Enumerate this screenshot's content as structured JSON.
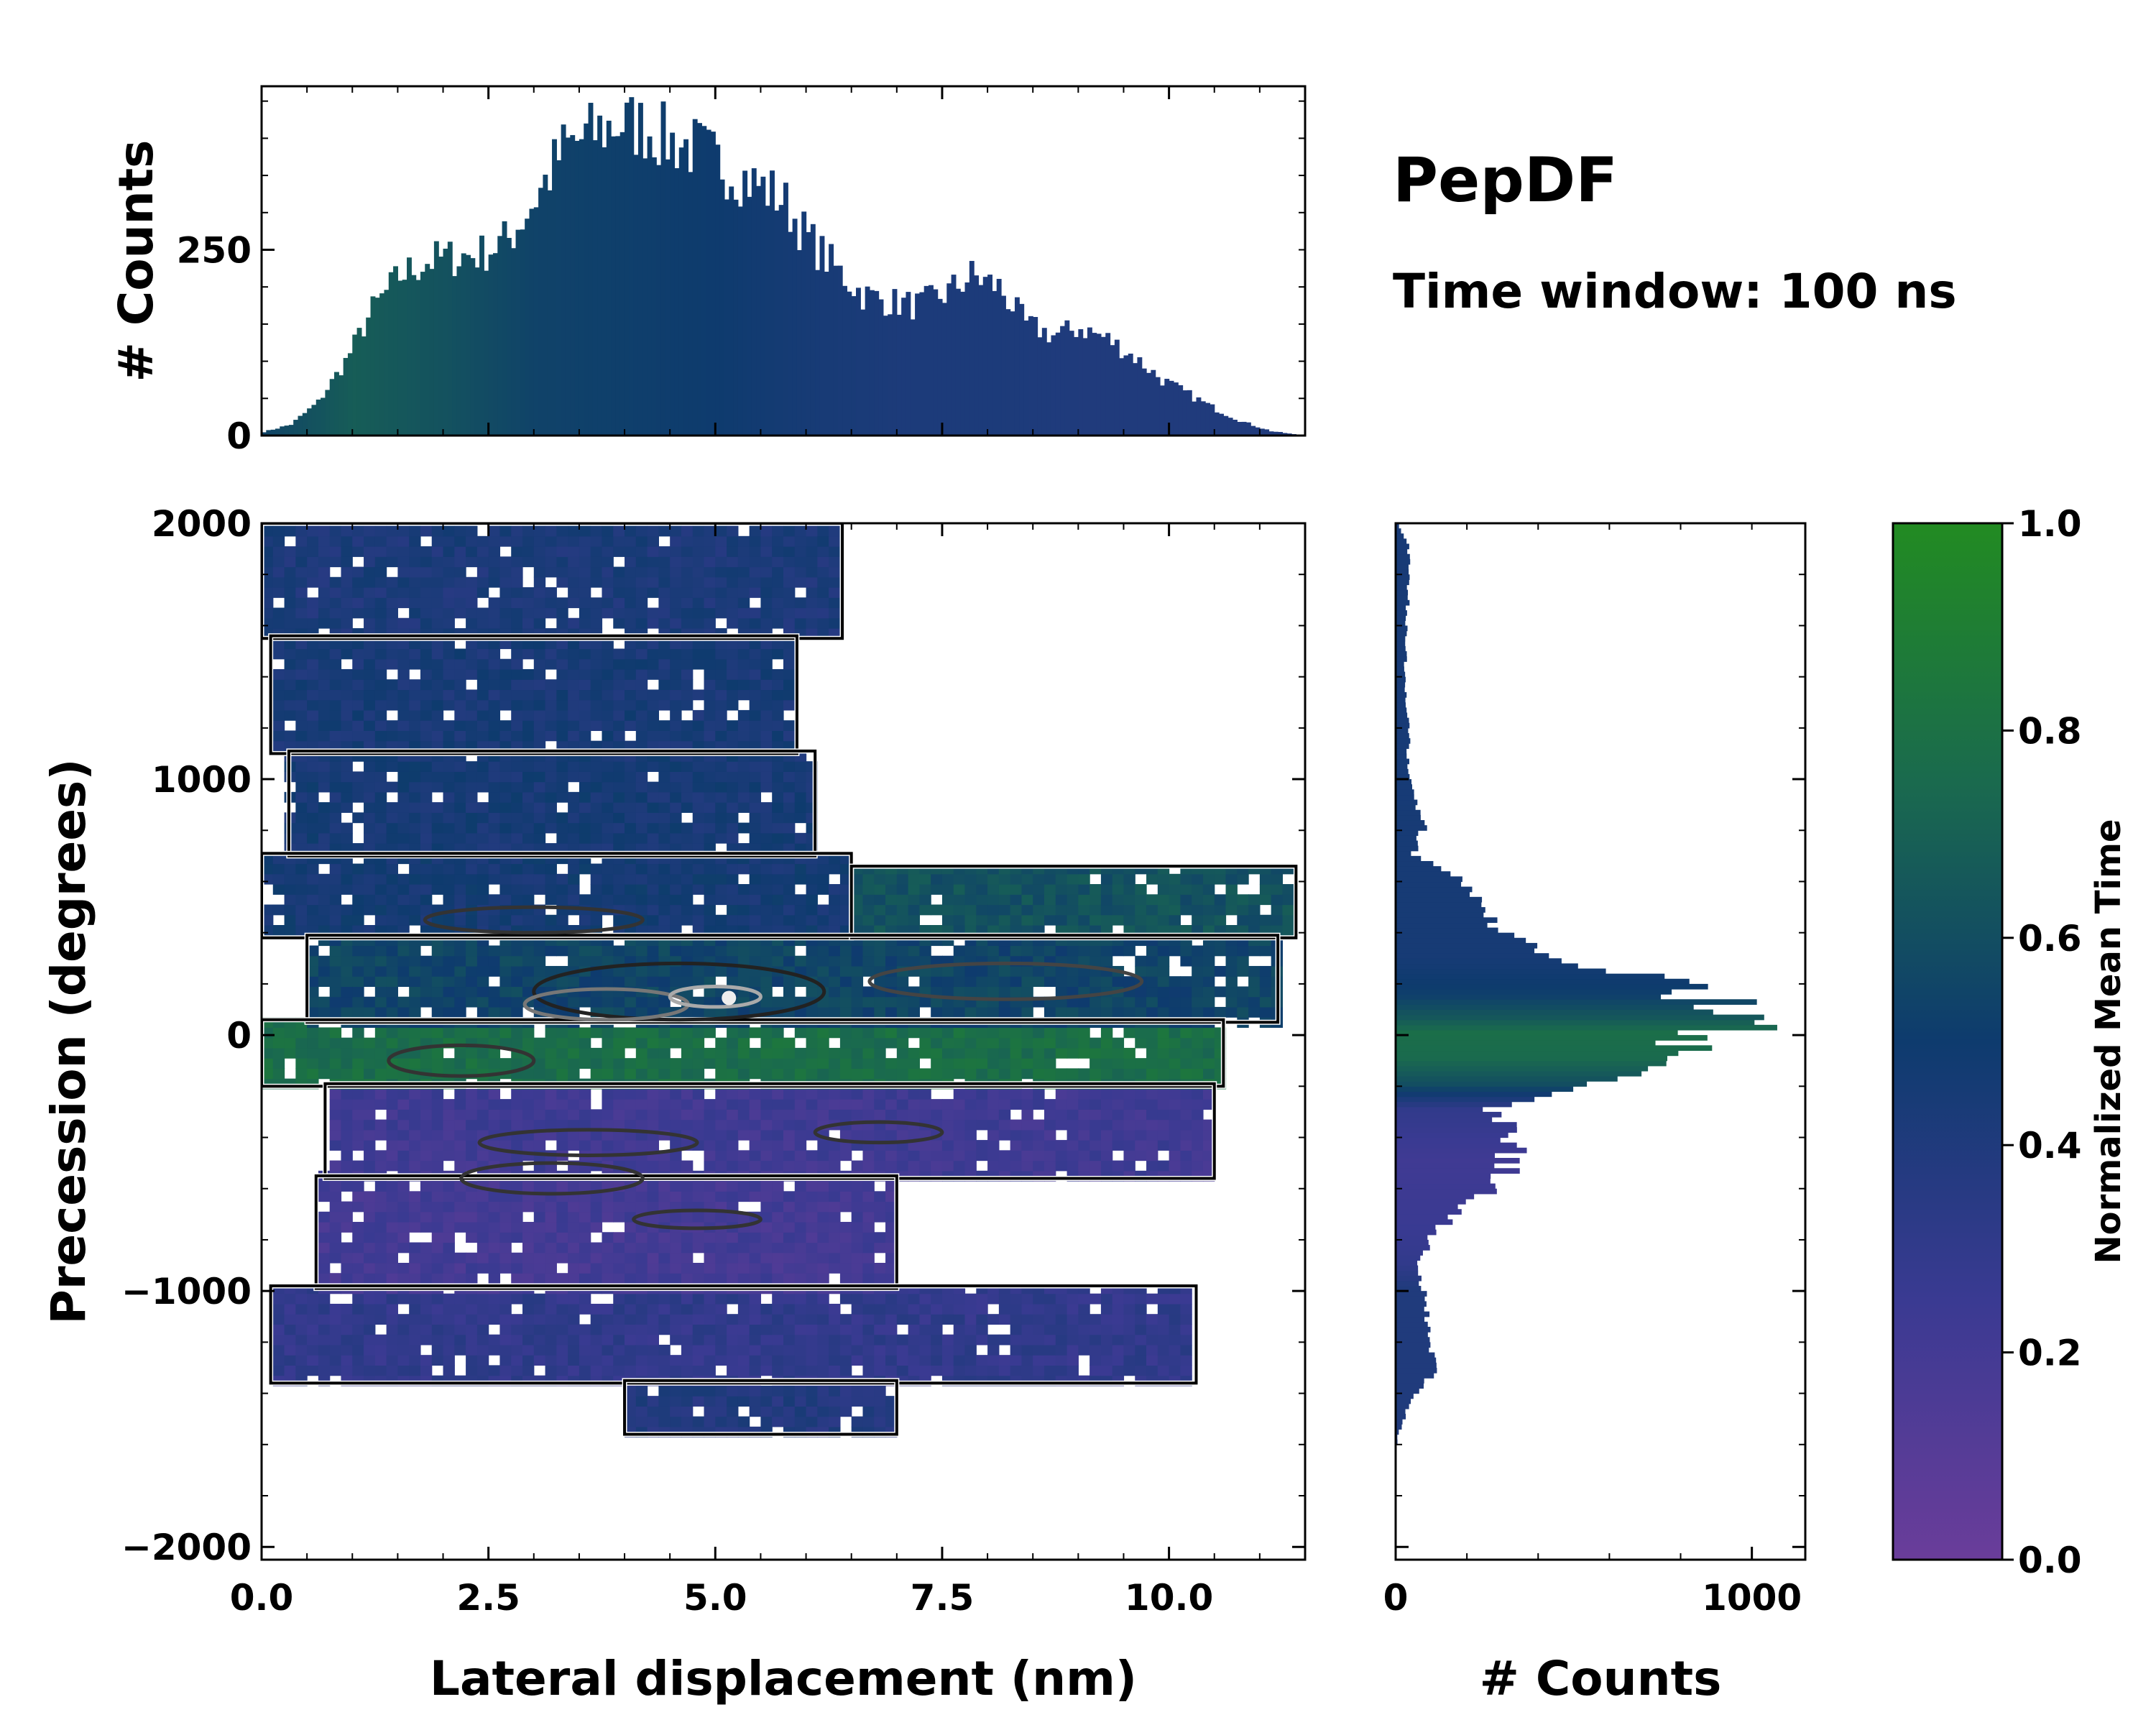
{
  "chart_data": [
    {
      "type": "histogram",
      "name": "top-marginal",
      "ylabel": "# Counts",
      "yticks": [
        0,
        250
      ],
      "ylim": [
        0,
        470
      ],
      "xlim": [
        0,
        11.5
      ],
      "bin_width": 0.1,
      "x_profile": [
        [
          0,
          5
        ],
        [
          0.3,
          15
        ],
        [
          0.6,
          45
        ],
        [
          0.9,
          100
        ],
        [
          1.2,
          170
        ],
        [
          1.5,
          215
        ],
        [
          1.8,
          235
        ],
        [
          2.1,
          240
        ],
        [
          2.4,
          245
        ],
        [
          2.7,
          265
        ],
        [
          3.0,
          320
        ],
        [
          3.3,
          385
        ],
        [
          3.6,
          405
        ],
        [
          3.9,
          420
        ],
        [
          4.2,
          415
        ],
        [
          4.5,
          395
        ],
        [
          4.8,
          385
        ],
        [
          5.1,
          360
        ],
        [
          5.4,
          340
        ],
        [
          5.7,
          320
        ],
        [
          6.0,
          265
        ],
        [
          6.3,
          225
        ],
        [
          6.6,
          190
        ],
        [
          6.9,
          180
        ],
        [
          7.2,
          175
        ],
        [
          7.5,
          190
        ],
        [
          7.8,
          215
        ],
        [
          8.1,
          200
        ],
        [
          8.4,
          150
        ],
        [
          8.7,
          135
        ],
        [
          9.0,
          145
        ],
        [
          9.3,
          130
        ],
        [
          9.6,
          105
        ],
        [
          9.9,
          75
        ],
        [
          10.2,
          55
        ],
        [
          10.5,
          35
        ],
        [
          10.8,
          18
        ],
        [
          11.1,
          6
        ],
        [
          11.4,
          1
        ]
      ],
      "color_profile": [
        [
          0,
          0.55
        ],
        [
          1.0,
          0.68
        ],
        [
          2.0,
          0.62
        ],
        [
          3.0,
          0.54
        ],
        [
          4.0,
          0.52
        ],
        [
          5.0,
          0.5
        ],
        [
          6.0,
          0.45
        ],
        [
          7.0,
          0.42
        ],
        [
          8.0,
          0.42
        ],
        [
          9.0,
          0.4
        ],
        [
          10.0,
          0.4
        ],
        [
          11.5,
          0.4
        ]
      ]
    },
    {
      "type": "heatmap",
      "name": "main-2d-histogram",
      "xlabel": "Lateral displacement (nm)",
      "ylabel": "Precession (degrees)",
      "xlim": [
        0,
        11.5
      ],
      "ylim": [
        -2050,
        2000
      ],
      "xticks": [
        0.0,
        2.5,
        5.0,
        7.5,
        10.0
      ],
      "xtick_labels": [
        "0.0",
        "2.5",
        "5.0",
        "7.5",
        "10.0"
      ],
      "yticks": [
        -2000,
        -1000,
        0,
        1000,
        2000
      ],
      "ytick_labels": [
        "−2000",
        "−1000",
        "0",
        "1000",
        "2000"
      ],
      "colorscale": "normalized mean time (0 purple → 0.5 navy → 1 green)",
      "contours": "black / gray density contours",
      "regions": [
        {
          "x": [
            0.0,
            6.4
          ],
          "y": [
            1550,
            2000
          ],
          "value": 0.42
        },
        {
          "x": [
            0.1,
            5.9
          ],
          "y": [
            1100,
            1560
          ],
          "value": 0.44
        },
        {
          "x": [
            0.3,
            6.1
          ],
          "y": [
            700,
            1110
          ],
          "value": 0.45
        },
        {
          "x": [
            0.0,
            6.5
          ],
          "y": [
            380,
            710
          ],
          "value": 0.46
        },
        {
          "x": [
            6.5,
            11.4
          ],
          "y": [
            380,
            660
          ],
          "value": 0.62
        },
        {
          "x": [
            0.5,
            11.2
          ],
          "y": [
            50,
            390
          ],
          "value": 0.55
        },
        {
          "x": [
            0.0,
            10.6
          ],
          "y": [
            -200,
            60
          ],
          "value": 0.78
        },
        {
          "x": [
            0.7,
            10.5
          ],
          "y": [
            -560,
            -190
          ],
          "value": 0.22
        },
        {
          "x": [
            0.6,
            7.0
          ],
          "y": [
            -990,
            -550
          ],
          "value": 0.2
        },
        {
          "x": [
            0.1,
            10.3
          ],
          "y": [
            -1360,
            -980
          ],
          "value": 0.3
        },
        {
          "x": [
            4.0,
            7.0
          ],
          "y": [
            -1560,
            -1350
          ],
          "value": 0.38
        }
      ]
    },
    {
      "type": "histogram",
      "orientation": "horizontal",
      "name": "right-marginal",
      "xlabel": "# Counts",
      "xticks": [
        0,
        1000
      ],
      "xlim": [
        0,
        1150
      ],
      "ylim": [
        -2050,
        2000
      ],
      "bin_width": 20,
      "y_profile": [
        [
          -1580,
          5
        ],
        [
          -1500,
          25
        ],
        [
          -1400,
          60
        ],
        [
          -1300,
          120
        ],
        [
          -1200,
          100
        ],
        [
          -1100,
          85
        ],
        [
          -1000,
          75
        ],
        [
          -900,
          70
        ],
        [
          -800,
          100
        ],
        [
          -700,
          170
        ],
        [
          -600,
          280
        ],
        [
          -500,
          320
        ],
        [
          -400,
          350
        ],
        [
          -300,
          260
        ],
        [
          -200,
          500
        ],
        [
          -100,
          760
        ],
        [
          0,
          900
        ],
        [
          60,
          1040
        ],
        [
          130,
          880
        ],
        [
          200,
          830
        ],
        [
          300,
          420
        ],
        [
          400,
          290
        ],
        [
          500,
          270
        ],
        [
          600,
          170
        ],
        [
          700,
          50
        ],
        [
          800,
          80
        ],
        [
          900,
          60
        ],
        [
          1000,
          40
        ],
        [
          1100,
          35
        ],
        [
          1200,
          40
        ],
        [
          1300,
          30
        ],
        [
          1400,
          25
        ],
        [
          1500,
          30
        ],
        [
          1600,
          30
        ],
        [
          1700,
          35
        ],
        [
          1800,
          40
        ],
        [
          1900,
          35
        ],
        [
          2000,
          5
        ]
      ],
      "color_profile": [
        [
          -1600,
          0.4
        ],
        [
          -1000,
          0.4
        ],
        [
          -900,
          0.3
        ],
        [
          -750,
          0.25
        ],
        [
          -500,
          0.22
        ],
        [
          -300,
          0.3
        ],
        [
          -200,
          0.6
        ],
        [
          -100,
          0.75
        ],
        [
          0,
          0.78
        ],
        [
          60,
          0.65
        ],
        [
          150,
          0.52
        ],
        [
          300,
          0.45
        ],
        [
          600,
          0.45
        ],
        [
          2000,
          0.44
        ]
      ]
    }
  ],
  "colorbar": {
    "label": "Normalized Mean Time",
    "range": [
      0.0,
      1.0
    ],
    "ticks": [
      "0.0",
      "0.2",
      "0.4",
      "0.6",
      "0.8",
      "1.0"
    ],
    "stops": [
      {
        "v": 0.0,
        "c": "#6a3d9a"
      },
      {
        "v": 0.25,
        "c": "#3a3a92"
      },
      {
        "v": 0.5,
        "c": "#0e3b6e"
      },
      {
        "v": 0.75,
        "c": "#1a6a4e"
      },
      {
        "v": 1.0,
        "c": "#228b22"
      }
    ]
  },
  "title": "PepDF",
  "subtitle": "Time window: 100 ns"
}
